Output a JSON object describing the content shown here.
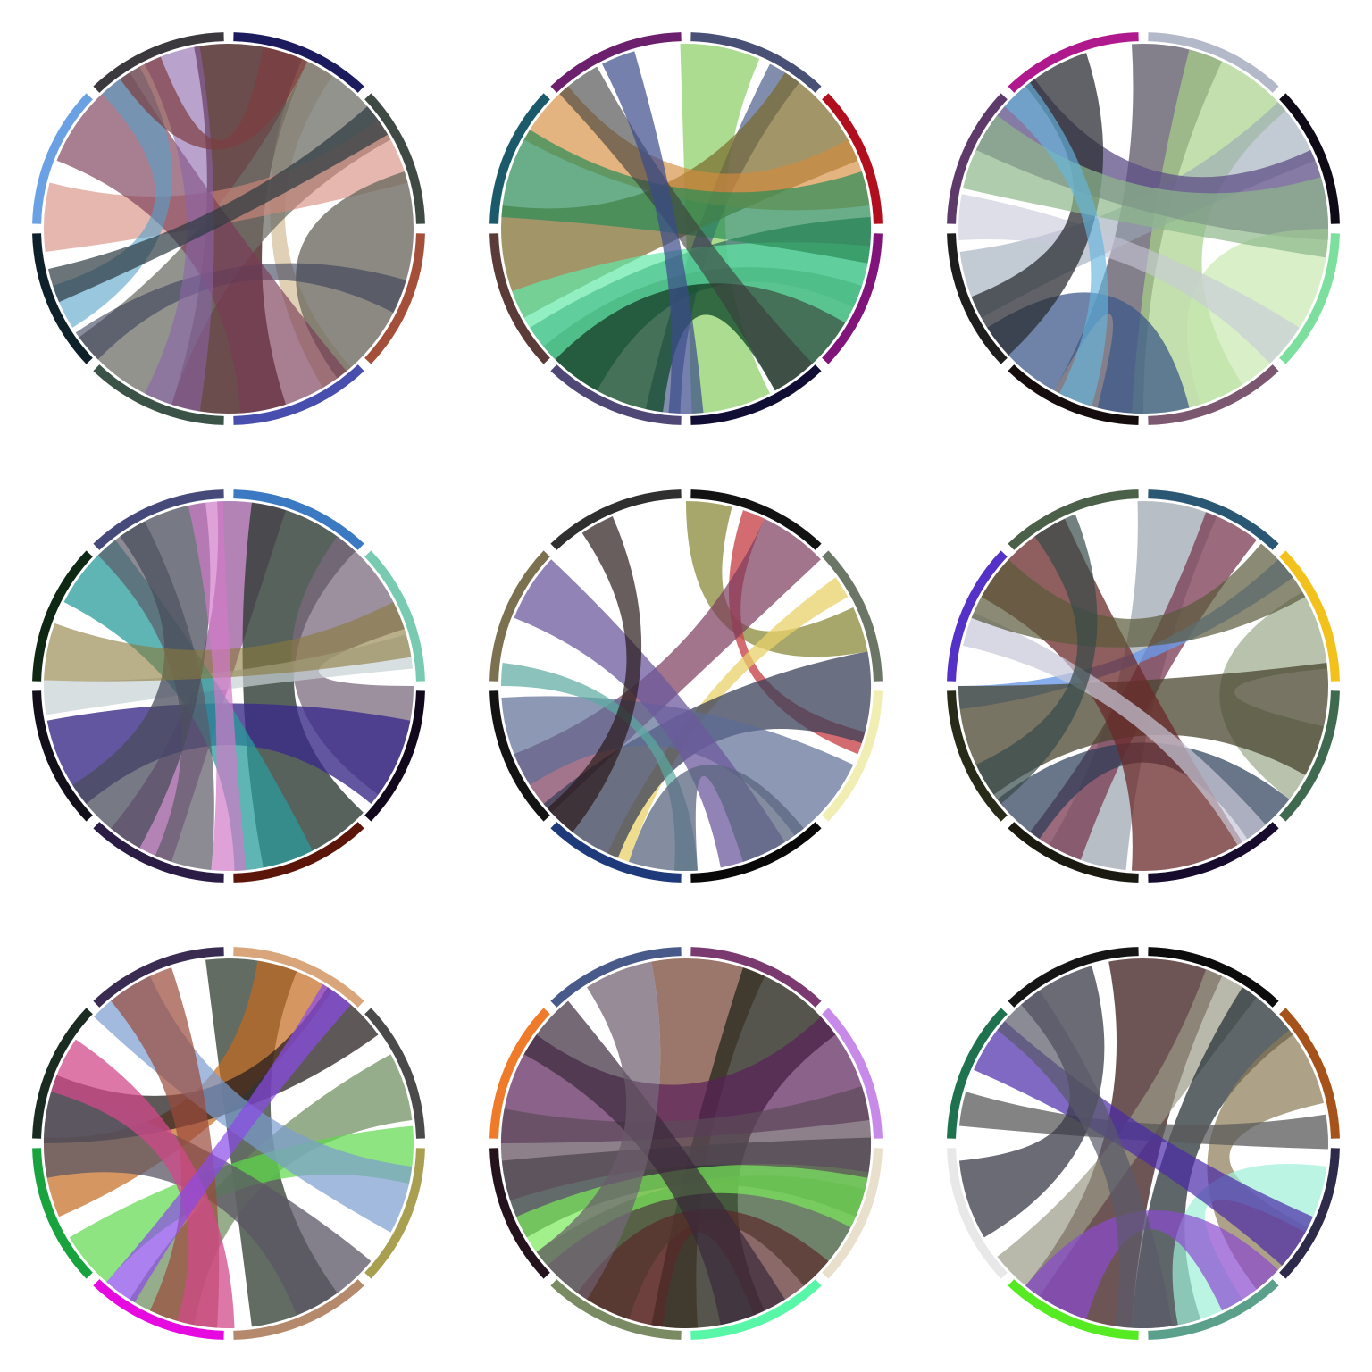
{
  "diagrams": [
    {
      "segments": [
        "#1c1b5e",
        "#3f4a44",
        "#a44f3a",
        "#484eae",
        "#3b5347",
        "#0e2029",
        "#6aa1e4",
        "#3b383e",
        "#1c1b5e"
      ],
      "chords": [
        {
          "a": 0.02,
          "b": 0.5,
          "c": "#3a1212",
          "w": 0.1,
          "o": 0.75
        },
        {
          "a": 0.08,
          "b": 0.4,
          "c": "#c4a97a",
          "w": 0.03,
          "o": 0.55
        },
        {
          "a": 0.12,
          "b": 0.6,
          "c": "#6f6f68",
          "w": 0.1,
          "o": 0.75
        },
        {
          "a": 0.18,
          "b": 0.76,
          "c": "#d4877a",
          "w": 0.06,
          "o": 0.6
        },
        {
          "a": 0.26,
          "b": 0.34,
          "c": "#6e6c62",
          "w": 0.12,
          "o": 0.8
        },
        {
          "a": 0.31,
          "b": 0.64,
          "c": "#3b3f58",
          "w": 0.03,
          "o": 0.6
        },
        {
          "a": 0.44,
          "b": 0.86,
          "c": "#7a3a56",
          "w": 0.1,
          "o": 0.65
        },
        {
          "a": 0.55,
          "b": 0.95,
          "c": "#8b64a8",
          "w": 0.05,
          "o": 0.6
        },
        {
          "a": 0.68,
          "b": 0.9,
          "c": "#55a2c8",
          "w": 0.04,
          "o": 0.6
        },
        {
          "a": 0.92,
          "b": 0.05,
          "c": "#7d3d40",
          "w": 0.04,
          "o": 0.7
        },
        {
          "a": 0.7,
          "b": 0.15,
          "c": "#2b3940",
          "w": 0.03,
          "o": 0.7
        }
      ]
    },
    {
      "segments": [
        "#485075",
        "#b10e1e",
        "#81147a",
        "#110e36",
        "#4f4775",
        "#5a3b37",
        "#1b5a6a",
        "#6c1f6c",
        "#485075"
      ],
      "chords": [
        {
          "a": 0.03,
          "b": 0.46,
          "c": "#8fd06a",
          "w": 0.07,
          "o": 0.75
        },
        {
          "a": 0.09,
          "b": 0.52,
          "c": "#4b5d8a",
          "w": 0.03,
          "o": 0.7
        },
        {
          "a": 0.14,
          "b": 0.72,
          "c": "#7a6a2a",
          "w": 0.1,
          "o": 0.7
        },
        {
          "a": 0.2,
          "b": 0.86,
          "c": "#d48b3c",
          "w": 0.06,
          "o": 0.65
        },
        {
          "a": 0.28,
          "b": 0.62,
          "c": "#2a6c5a",
          "w": 0.08,
          "o": 0.75
        },
        {
          "a": 0.36,
          "b": 0.58,
          "c": "#164d2e",
          "w": 0.12,
          "o": 0.8
        },
        {
          "a": 0.66,
          "b": 0.3,
          "c": "#62e8a8",
          "w": 0.07,
          "o": 0.7
        },
        {
          "a": 0.8,
          "b": 0.24,
          "c": "#2a8c55",
          "w": 0.08,
          "o": 0.7
        },
        {
          "a": 0.9,
          "b": 0.4,
          "c": "#3b3b3b",
          "w": 0.04,
          "o": 0.6
        },
        {
          "a": 0.5,
          "b": 0.94,
          "c": "#3b4a8a",
          "w": 0.03,
          "o": 0.7
        }
      ]
    },
    {
      "segments": [
        "#b3b9c8",
        "#0f0b16",
        "#7ddf9e",
        "#7b5770",
        "#150d0d",
        "#1d1d1d",
        "#5e3a6a",
        "#b0198e",
        "#b3b9c8"
      ],
      "chords": [
        {
          "a": 0.03,
          "b": 0.54,
          "c": "#5b5564",
          "w": 0.08,
          "o": 0.75
        },
        {
          "a": 0.09,
          "b": 0.46,
          "c": "#a8d28a",
          "w": 0.1,
          "o": 0.7
        },
        {
          "a": 0.16,
          "b": 0.7,
          "c": "#9aa6b8",
          "w": 0.06,
          "o": 0.6
        },
        {
          "a": 0.22,
          "b": 0.86,
          "c": "#5d4f86",
          "w": 0.08,
          "o": 0.75
        },
        {
          "a": 0.3,
          "b": 0.4,
          "c": "#c7e8b0",
          "w": 0.1,
          "o": 0.7
        },
        {
          "a": 0.36,
          "b": 0.76,
          "c": "#c8c8d8",
          "w": 0.04,
          "o": 0.6
        },
        {
          "a": 0.5,
          "b": 0.62,
          "c": "#3d5a8a",
          "w": 0.08,
          "o": 0.75
        },
        {
          "a": 0.66,
          "b": 0.92,
          "c": "#2b2e34",
          "w": 0.06,
          "o": 0.75
        },
        {
          "a": 0.82,
          "b": 0.24,
          "c": "#8db88a",
          "w": 0.07,
          "o": 0.7
        },
        {
          "a": 0.88,
          "b": 0.56,
          "c": "#66b6dd",
          "w": 0.03,
          "o": 0.65
        }
      ]
    },
    {
      "segments": [
        "#3b7ac3",
        "#78cbb0",
        "#12081c",
        "#5b1609",
        "#2a1c44",
        "#120e1a",
        "#0e2814",
        "#454a7a",
        "#3b7ac3"
      ],
      "chords": [
        {
          "a": 0.02,
          "b": 0.58,
          "c": "#9b5a9c",
          "w": 0.06,
          "o": 0.75
        },
        {
          "a": 0.07,
          "b": 0.42,
          "c": "#2e3b35",
          "w": 0.1,
          "o": 0.8
        },
        {
          "a": 0.15,
          "b": 0.3,
          "c": "#7b6a7e",
          "w": 0.1,
          "o": 0.75
        },
        {
          "a": 0.22,
          "b": 0.74,
          "c": "#c8d1d4",
          "w": 0.03,
          "o": 0.7
        },
        {
          "a": 0.32,
          "b": 0.68,
          "c": "#3b2c8a",
          "w": 0.08,
          "o": 0.8
        },
        {
          "a": 0.46,
          "b": 0.86,
          "c": "#2a9b9b",
          "w": 0.07,
          "o": 0.75
        },
        {
          "a": 0.54,
          "b": 0.9,
          "c": "#5b5a66",
          "w": 0.05,
          "o": 0.7
        },
        {
          "a": 0.62,
          "b": 0.94,
          "c": "#4a4e5c",
          "w": 0.08,
          "o": 0.75
        },
        {
          "a": 0.78,
          "b": 0.2,
          "c": "#8a7a3a",
          "w": 0.05,
          "o": 0.6
        },
        {
          "a": 0.98,
          "b": 0.5,
          "c": "#d07ac8",
          "w": 0.03,
          "o": 0.7
        }
      ]
    },
    {
      "segments": [
        "#121212",
        "#6b7667",
        "#f0eeb2",
        "#080808",
        "#1e3a7a",
        "#131313",
        "#7b7150",
        "#2f2f2f",
        "#121212"
      ],
      "chords": [
        {
          "a": 0.02,
          "b": 0.2,
          "c": "#8a8a3a",
          "w": 0.04,
          "o": 0.75
        },
        {
          "a": 0.06,
          "b": 0.3,
          "c": "#c8474e",
          "w": 0.02,
          "o": 0.8
        },
        {
          "a": 0.1,
          "b": 0.66,
          "c": "#7a3a5c",
          "w": 0.06,
          "o": 0.7
        },
        {
          "a": 0.16,
          "b": 0.56,
          "c": "#e8d06a",
          "w": 0.02,
          "o": 0.75
        },
        {
          "a": 0.26,
          "b": 0.6,
          "c": "#3a3f58",
          "w": 0.08,
          "o": 0.75
        },
        {
          "a": 0.36,
          "b": 0.7,
          "c": "#5c6c96",
          "w": 0.08,
          "o": 0.7
        },
        {
          "a": 0.44,
          "b": 0.84,
          "c": "#6c5a9e",
          "w": 0.06,
          "o": 0.75
        },
        {
          "a": 0.5,
          "b": 0.76,
          "c": "#5aaaa0",
          "w": 0.02,
          "o": 0.7
        },
        {
          "a": 0.62,
          "b": 0.92,
          "c": "#2a1a1a",
          "w": 0.03,
          "o": 0.7
        },
        {
          "a": 0.42,
          "b": 0.52,
          "c": "#5b6680",
          "w": 0.06,
          "o": 0.75
        }
      ]
    },
    {
      "segments": [
        "#2a5874",
        "#f2c11c",
        "#3f6a4f",
        "#170b2d",
        "#1a1a11",
        "#282b18",
        "#5432c8",
        "#4b6048",
        "#2a5874"
      ],
      "chords": [
        {
          "a": 0.03,
          "b": 0.55,
          "c": "#9aa3ae",
          "w": 0.07,
          "o": 0.7
        },
        {
          "a": 0.08,
          "b": 0.58,
          "c": "#7a3a52",
          "w": 0.05,
          "o": 0.75
        },
        {
          "a": 0.14,
          "b": 0.74,
          "c": "#6c9ae8",
          "w": 0.02,
          "o": 0.8
        },
        {
          "a": 0.2,
          "b": 0.32,
          "c": "#9aa88a",
          "w": 0.07,
          "o": 0.7
        },
        {
          "a": 0.28,
          "b": 0.7,
          "c": "#4a4530",
          "w": 0.1,
          "o": 0.75
        },
        {
          "a": 0.38,
          "b": 0.62,
          "c": "#2a3a55",
          "w": 0.05,
          "o": 0.7
        },
        {
          "a": 0.46,
          "b": 0.88,
          "c": "#6a2a2a",
          "w": 0.1,
          "o": 0.75
        },
        {
          "a": 0.8,
          "b": 0.4,
          "c": "#c8c8d8",
          "w": 0.03,
          "o": 0.7
        },
        {
          "a": 0.84,
          "b": 0.14,
          "c": "#5a5a3a",
          "w": 0.06,
          "o": 0.7
        },
        {
          "a": 0.92,
          "b": 0.66,
          "c": "#364a48",
          "w": 0.04,
          "o": 0.7
        }
      ]
    },
    {
      "segments": [
        "#d8a67a",
        "#4a4a4a",
        "#a8a050",
        "#b58a6c",
        "#e60ae0",
        "#18a33e",
        "#1a2b21",
        "#3a2b52",
        "#d8a67a"
      ],
      "chords": [
        {
          "a": 0.02,
          "b": 0.44,
          "c": "#2e3b2e",
          "w": 0.08,
          "o": 0.75
        },
        {
          "a": 0.06,
          "b": 0.72,
          "c": "#c46a20",
          "w": 0.07,
          "o": 0.7
        },
        {
          "a": 0.12,
          "b": 0.78,
          "c": "#2a2020",
          "w": 0.06,
          "o": 0.75
        },
        {
          "a": 0.2,
          "b": 0.56,
          "c": "#6a8a5a",
          "w": 0.06,
          "o": 0.7
        },
        {
          "a": 0.26,
          "b": 0.64,
          "c": "#5cd84a",
          "w": 0.05,
          "o": 0.7
        },
        {
          "a": 0.3,
          "b": 0.9,
          "c": "#7a9cd0",
          "w": 0.06,
          "o": 0.7
        },
        {
          "a": 0.4,
          "b": 0.76,
          "c": "#5b5564",
          "w": 0.08,
          "o": 0.75
        },
        {
          "a": 0.54,
          "b": 0.92,
          "c": "#9a4a3a",
          "w": 0.06,
          "o": 0.7
        },
        {
          "a": 0.52,
          "b": 0.82,
          "c": "#d04a8a",
          "w": 0.05,
          "o": 0.75
        },
        {
          "a": 0.6,
          "b": 0.1,
          "c": "#8a4ae8",
          "w": 0.03,
          "o": 0.7
        }
      ]
    },
    {
      "segments": [
        "#7a3a70",
        "#c88ae8",
        "#e8dfcc",
        "#58f7a8",
        "#7a8a62",
        "#24121c",
        "#ee7a2a",
        "#485a8a",
        "#7a3a70"
      ],
      "chords": [
        {
          "a": 0.02,
          "b": 0.54,
          "c": "#7a4a3a",
          "w": 0.1,
          "o": 0.75
        },
        {
          "a": 0.1,
          "b": 0.48,
          "c": "#2a2a20",
          "w": 0.1,
          "o": 0.8
        },
        {
          "a": 0.18,
          "b": 0.8,
          "c": "#5a1f58",
          "w": 0.1,
          "o": 0.7
        },
        {
          "a": 0.28,
          "b": 0.7,
          "c": "#2f3a38",
          "w": 0.07,
          "o": 0.75
        },
        {
          "a": 0.34,
          "b": 0.6,
          "c": "#3f5a3a",
          "w": 0.1,
          "o": 0.75
        },
        {
          "a": 0.4,
          "b": 0.56,
          "c": "#5a2a2a",
          "w": 0.08,
          "o": 0.7
        },
        {
          "a": 0.66,
          "b": 0.3,
          "c": "#7aea5a",
          "w": 0.05,
          "o": 0.7
        },
        {
          "a": 0.74,
          "b": 0.24,
          "c": "#5c4a58",
          "w": 0.08,
          "o": 0.7
        },
        {
          "a": 0.86,
          "b": 0.44,
          "c": "#3a2a3a",
          "w": 0.06,
          "o": 0.7
        },
        {
          "a": 0.94,
          "b": 0.62,
          "c": "#6a5a6a",
          "w": 0.06,
          "o": 0.7
        }
      ]
    },
    {
      "segments": [
        "#0c0c0c",
        "#a6531b",
        "#2e2a4a",
        "#5ba08a",
        "#56ea22",
        "#e8e8e8",
        "#1e724e",
        "#151515",
        "#0c0c0c"
      ],
      "chords": [
        {
          "a": 0.02,
          "b": 0.56,
          "c": "#4a2a2a",
          "w": 0.1,
          "o": 0.8
        },
        {
          "a": 0.08,
          "b": 0.62,
          "c": "#9a9a88",
          "w": 0.05,
          "o": 0.7
        },
        {
          "a": 0.12,
          "b": 0.48,
          "c": "#2a3338",
          "w": 0.06,
          "o": 0.75
        },
        {
          "a": 0.18,
          "b": 0.36,
          "c": "#8a7a55",
          "w": 0.07,
          "o": 0.7
        },
        {
          "a": 0.24,
          "b": 0.78,
          "c": "#5a5a5a",
          "w": 0.03,
          "o": 0.75
        },
        {
          "a": 0.3,
          "b": 0.44,
          "c": "#9ff0d8",
          "w": 0.06,
          "o": 0.7
        },
        {
          "a": 0.34,
          "b": 0.84,
          "c": "#4a2aa8",
          "w": 0.05,
          "o": 0.7
        },
        {
          "a": 0.4,
          "b": 0.58,
          "c": "#8a4ad0",
          "w": 0.06,
          "o": 0.7
        },
        {
          "a": 0.7,
          "b": 0.92,
          "c": "#3a3a48",
          "w": 0.07,
          "o": 0.75
        },
        {
          "a": 0.88,
          "b": 0.5,
          "c": "#5a5a6a",
          "w": 0.05,
          "o": 0.7
        }
      ]
    }
  ]
}
